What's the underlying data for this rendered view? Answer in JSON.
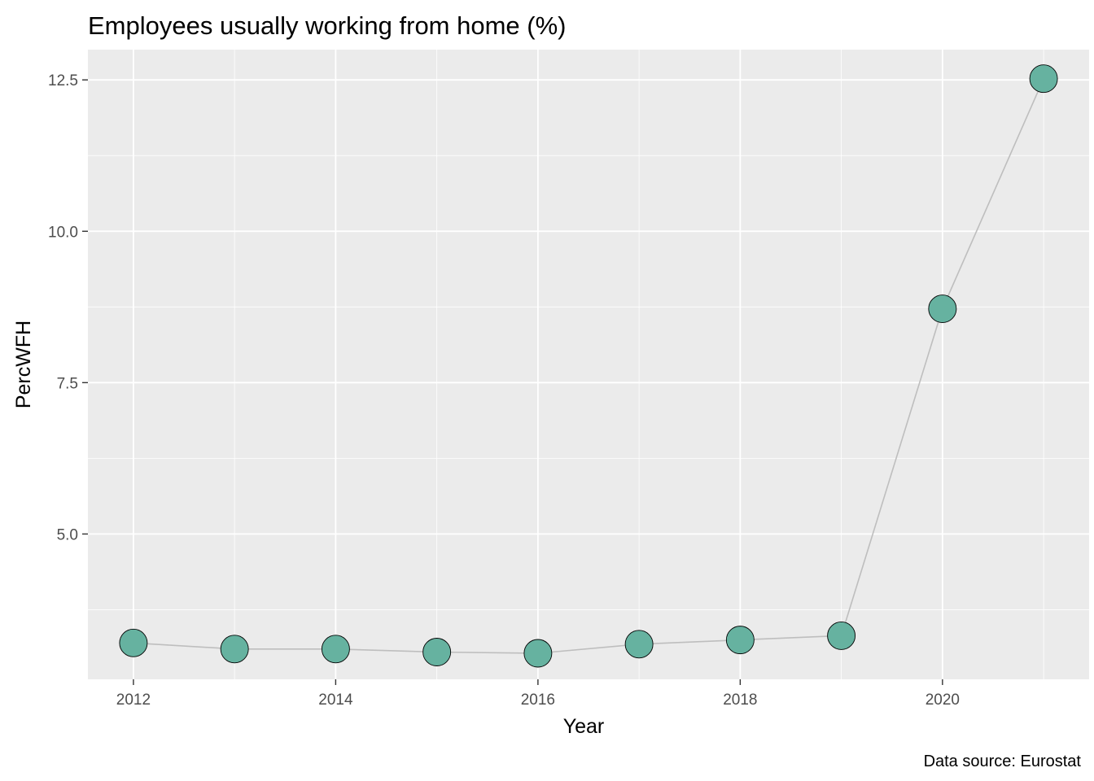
{
  "chart_data": {
    "type": "line",
    "title": "Employees usually working from home (%)",
    "xlabel": "Year",
    "ylabel": "PercWFH",
    "caption": "Data source: Eurostat",
    "x": [
      2012,
      2013,
      2014,
      2015,
      2016,
      2017,
      2018,
      2019,
      2020,
      2021
    ],
    "series": [
      {
        "values": [
          3.2,
          3.1,
          3.1,
          3.05,
          3.03,
          3.18,
          3.25,
          3.32,
          8.72,
          12.52
        ]
      }
    ],
    "xlim": [
      2011.55,
      2021.45
    ],
    "ylim": [
      2.6,
      13.0
    ],
    "xticks": [
      2012,
      2014,
      2016,
      2018,
      2020
    ],
    "xtick_labels": [
      "2012",
      "2014",
      "2016",
      "2018",
      "2020"
    ],
    "yticks": [
      5.0,
      7.5,
      10.0,
      12.5
    ],
    "ytick_labels": [
      "5.0",
      "7.5",
      "10.0",
      "12.5"
    ],
    "grid": true,
    "colors": {
      "panel": "#ebebeb",
      "grid": "#ffffff",
      "line": "#bebebe",
      "point_fill": "#66b2a0",
      "point_stroke": "#000000"
    }
  }
}
